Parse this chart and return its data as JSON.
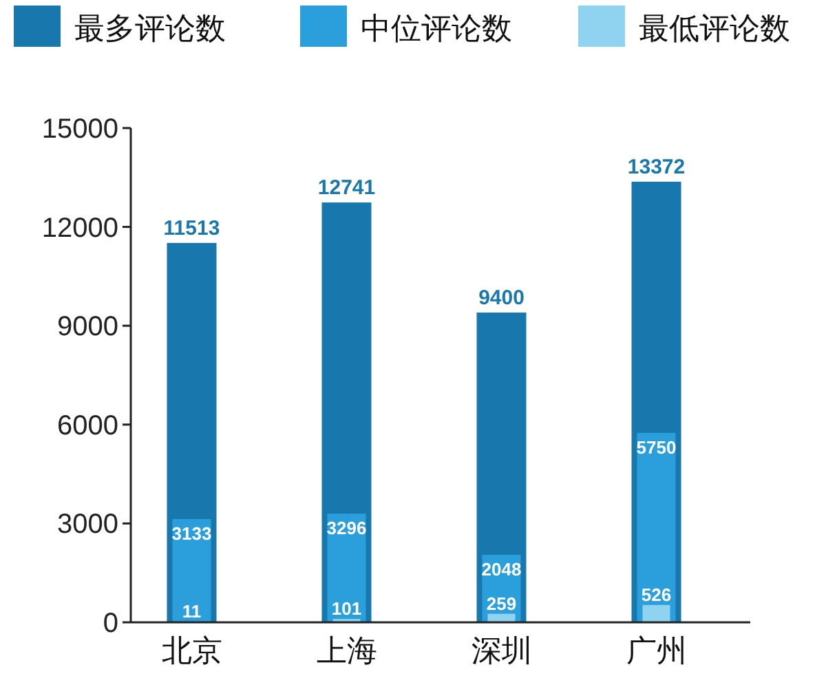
{
  "chart_data": {
    "type": "bar",
    "categories": [
      "北京",
      "上海",
      "深圳",
      "广州"
    ],
    "series": [
      {
        "name": "最多评论数",
        "color": "#1878ad",
        "values": [
          11513,
          12741,
          9400,
          13372
        ]
      },
      {
        "name": "中位评论数",
        "color": "#2b9fdb",
        "values": [
          3133,
          3296,
          2048,
          5750
        ]
      },
      {
        "name": "最低评论数",
        "color": "#8fd3f0",
        "values": [
          11,
          101,
          259,
          526
        ]
      }
    ],
    "ylim": [
      0,
      15000
    ],
    "yticks": [
      0,
      3000,
      6000,
      9000,
      12000,
      15000
    ],
    "data_labels": true,
    "legend": "top",
    "grid": false
  }
}
